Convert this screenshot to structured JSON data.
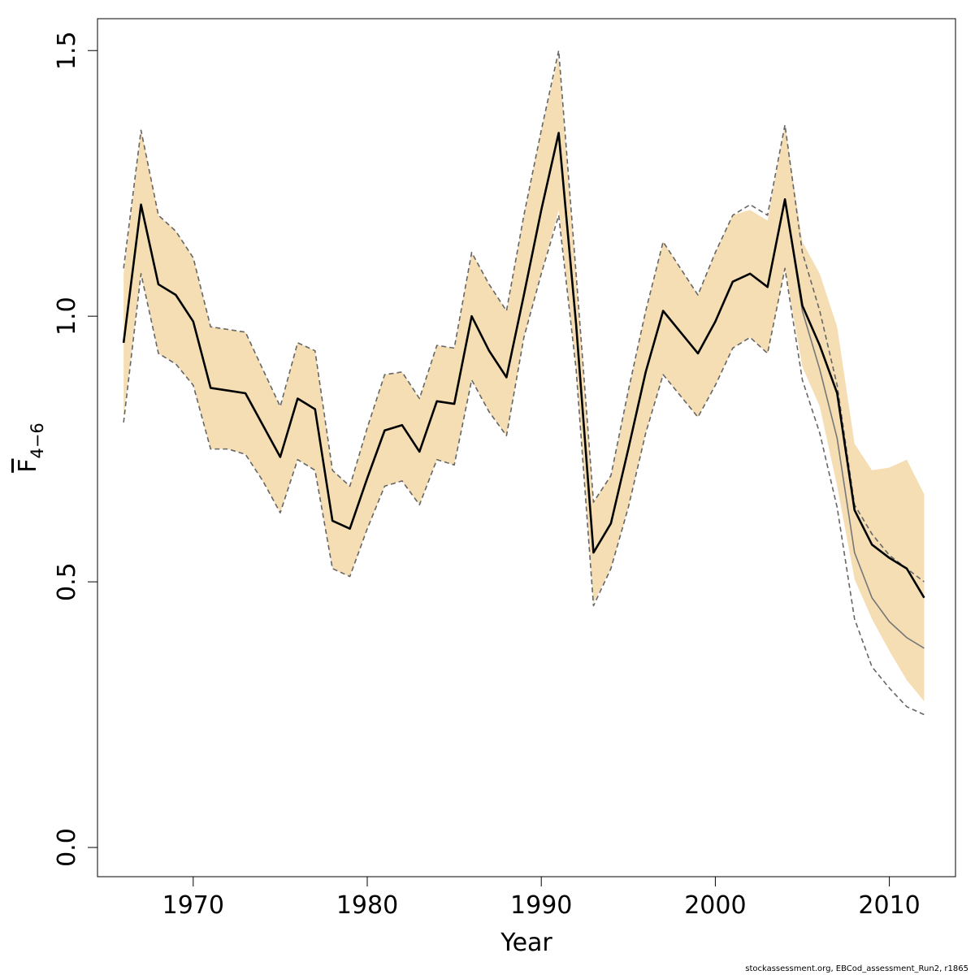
{
  "chart_data": {
    "type": "area",
    "xlabel": "Year",
    "ylabel": {
      "base": "F",
      "subscript": "4−6"
    },
    "xlim": [
      1964.5,
      2013.8
    ],
    "ylim": [
      -0.055,
      1.56
    ],
    "x_ticks": [
      1970,
      1980,
      1990,
      2000,
      2010
    ],
    "y_ticks": [
      0.0,
      0.5,
      1.0,
      1.5
    ],
    "x_tick_labels": [
      "1970",
      "1980",
      "1990",
      "2000",
      "2010"
    ],
    "y_tick_labels": [
      "0.0",
      "0.5",
      "1.0",
      "1.5"
    ],
    "grid": false,
    "years": [
      1966,
      1967,
      1968,
      1969,
      1970,
      1971,
      1972,
      1973,
      1974,
      1975,
      1976,
      1977,
      1978,
      1979,
      1980,
      1981,
      1982,
      1983,
      1984,
      1985,
      1986,
      1987,
      1988,
      1989,
      1990,
      1991,
      1992,
      1993,
      1994,
      1995,
      1996,
      1997,
      1998,
      1999,
      2000,
      2001,
      2002,
      2003,
      2004,
      2005,
      2006,
      2007,
      2008,
      2009,
      2010,
      2011,
      2012
    ],
    "band_upper": [
      1.08,
      1.35,
      1.19,
      1.16,
      1.11,
      0.98,
      0.975,
      0.97,
      0.9,
      0.83,
      0.95,
      0.935,
      0.71,
      0.68,
      0.79,
      0.89,
      0.895,
      0.845,
      0.945,
      0.94,
      1.12,
      1.06,
      1.01,
      1.19,
      1.35,
      1.49,
      1.08,
      0.65,
      0.7,
      0.86,
      1.01,
      1.14,
      1.09,
      1.04,
      1.12,
      1.19,
      1.2,
      1.18,
      1.36,
      1.14,
      1.08,
      0.98,
      0.76,
      0.71,
      0.715,
      0.73,
      0.665
    ],
    "band_lower": [
      0.81,
      1.08,
      0.93,
      0.91,
      0.87,
      0.75,
      0.75,
      0.74,
      0.69,
      0.63,
      0.73,
      0.71,
      0.525,
      0.51,
      0.6,
      0.68,
      0.69,
      0.645,
      0.73,
      0.72,
      0.88,
      0.82,
      0.775,
      0.96,
      1.08,
      1.2,
      0.9,
      0.46,
      0.525,
      0.64,
      0.78,
      0.89,
      0.85,
      0.81,
      0.87,
      0.94,
      0.96,
      0.93,
      1.09,
      0.905,
      0.83,
      0.68,
      0.505,
      0.43,
      0.37,
      0.315,
      0.275
    ],
    "series": [
      {
        "values": [
          0.95,
          1.21,
          1.06,
          1.04,
          0.99,
          0.865,
          0.86,
          0.855,
          0.795,
          0.735,
          0.845,
          0.825,
          0.615,
          0.6,
          0.695,
          0.785,
          0.795,
          0.745,
          0.84,
          0.835,
          1.0,
          0.935,
          0.885,
          1.04,
          1.2,
          1.345,
          0.985,
          0.555,
          0.61,
          0.75,
          0.895,
          1.01,
          0.97,
          0.93,
          0.99,
          1.065,
          1.08,
          1.055,
          1.22,
          1.02,
          0.945,
          0.855,
          0.635,
          0.57,
          0.545,
          0.525,
          0.47
        ],
        "color": "#000000",
        "style": "solid"
      },
      {
        "values": [
          0.95,
          1.21,
          1.06,
          1.04,
          0.99,
          0.865,
          0.86,
          0.855,
          0.795,
          0.735,
          0.845,
          0.825,
          0.615,
          0.6,
          0.695,
          0.785,
          0.795,
          0.745,
          0.84,
          0.835,
          1.0,
          0.935,
          0.885,
          1.04,
          1.2,
          1.345,
          0.985,
          0.555,
          0.61,
          0.75,
          0.895,
          1.01,
          0.97,
          0.93,
          0.99,
          1.065,
          1.08,
          1.055,
          1.22,
          1.01,
          0.9,
          0.77,
          0.555,
          0.47,
          0.425,
          0.395,
          0.375
        ],
        "color": "#777777",
        "style": "solid"
      },
      {
        "values": [
          1.09,
          1.35,
          1.19,
          1.16,
          1.11,
          0.98,
          0.975,
          0.97,
          0.9,
          0.83,
          0.95,
          0.935,
          0.71,
          0.68,
          0.79,
          0.89,
          0.895,
          0.845,
          0.945,
          0.94,
          1.12,
          1.06,
          1.01,
          1.19,
          1.35,
          1.5,
          1.08,
          0.65,
          0.7,
          0.86,
          1.01,
          1.14,
          1.09,
          1.04,
          1.12,
          1.19,
          1.21,
          1.19,
          1.36,
          1.12,
          1.01,
          0.87,
          0.645,
          0.59,
          0.55,
          0.525,
          0.5
        ],
        "color": "#666666",
        "style": "dashed"
      },
      {
        "values": [
          0.8,
          1.08,
          0.93,
          0.91,
          0.87,
          0.75,
          0.75,
          0.74,
          0.69,
          0.63,
          0.73,
          0.71,
          0.525,
          0.51,
          0.6,
          0.68,
          0.69,
          0.645,
          0.73,
          0.72,
          0.88,
          0.82,
          0.775,
          0.96,
          1.08,
          1.19,
          0.9,
          0.455,
          0.525,
          0.64,
          0.78,
          0.89,
          0.85,
          0.81,
          0.87,
          0.94,
          0.96,
          0.93,
          1.09,
          0.88,
          0.78,
          0.64,
          0.43,
          0.34,
          0.3,
          0.265,
          0.25
        ],
        "color": "#666666",
        "style": "dashed"
      }
    ],
    "band_color": "#F5DEB3"
  },
  "footer": "stockassessment.org, EBCod_assessment_Run2, r1865"
}
